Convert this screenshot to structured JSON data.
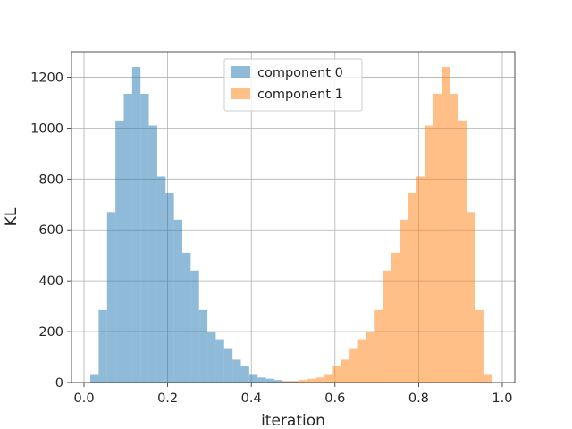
{
  "chart_data": {
    "type": "bar",
    "subtype": "histogram",
    "title": "",
    "xlabel": "iteration",
    "ylabel": "KL",
    "xlim": [
      -0.03,
      1.03
    ],
    "ylim": [
      0,
      1300
    ],
    "grid": true,
    "legend_position": "top-center",
    "xticks": [
      0.0,
      0.2,
      0.4,
      0.6,
      0.8,
      1.0
    ],
    "xtick_labels": [
      "0.0",
      "0.2",
      "0.4",
      "0.6",
      "0.8",
      "1.0"
    ],
    "yticks": [
      0,
      200,
      400,
      600,
      800,
      1000,
      1200
    ],
    "ytick_labels": [
      "0",
      "200",
      "400",
      "600",
      "800",
      "1000",
      "1200"
    ],
    "series": [
      {
        "name": "component 0",
        "color": "#1f77b4",
        "opacity": 0.5,
        "bin_edges": [
          0.015,
          0.035,
          0.055,
          0.075,
          0.095,
          0.115,
          0.135,
          0.155,
          0.175,
          0.195,
          0.215,
          0.235,
          0.255,
          0.275,
          0.295,
          0.315,
          0.335,
          0.355,
          0.375,
          0.395,
          0.415,
          0.435,
          0.455,
          0.475,
          0.495,
          0.515
        ],
        "counts": [
          30,
          285,
          670,
          1030,
          1135,
          1240,
          1135,
          1010,
          810,
          745,
          640,
          510,
          440,
          285,
          200,
          170,
          135,
          90,
          65,
          30,
          20,
          15,
          10,
          5,
          5
        ]
      },
      {
        "name": "component 1",
        "color": "#ff7f0e",
        "opacity": 0.5,
        "bin_edges": [
          0.475,
          0.495,
          0.515,
          0.535,
          0.555,
          0.575,
          0.595,
          0.615,
          0.635,
          0.655,
          0.675,
          0.695,
          0.715,
          0.735,
          0.755,
          0.775,
          0.795,
          0.815,
          0.835,
          0.855,
          0.875,
          0.895,
          0.915,
          0.935,
          0.955,
          0.975,
          0.995
        ],
        "counts": [
          5,
          5,
          10,
          15,
          20,
          30,
          65,
          90,
          135,
          170,
          200,
          285,
          440,
          510,
          640,
          745,
          810,
          1010,
          1135,
          1240,
          1135,
          1030,
          670,
          285,
          30,
          0
        ]
      }
    ]
  }
}
